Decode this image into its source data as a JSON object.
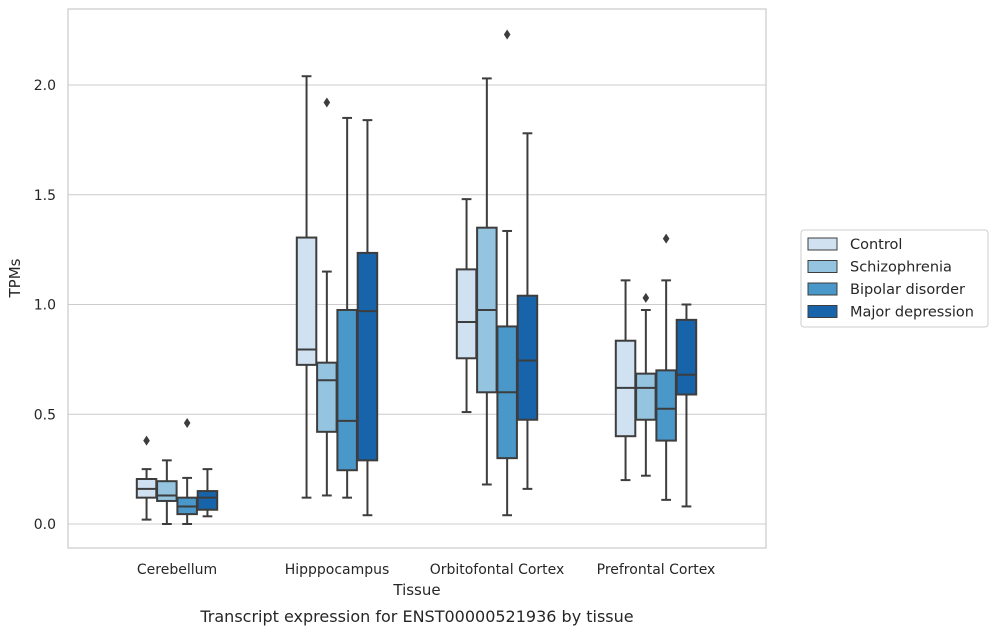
{
  "chart_data": {
    "type": "box",
    "title": "Transcript expression for ENST00000521936 by tissue",
    "xlabel": "Tissue",
    "ylabel": "TPMs",
    "ylim": [
      -0.11,
      2.35
    ],
    "yticks": [
      0.0,
      0.5,
      1.0,
      1.5,
      2.0
    ],
    "ytick_labels": [
      "0.0",
      "0.5",
      "1.0",
      "1.5",
      "2.0"
    ],
    "categories": [
      "Cerebellum",
      "Hipppocampus",
      "Orbitofontal Cortex",
      "Prefrontal Cortex"
    ],
    "grid": "horizontal",
    "legend_position": "right",
    "series": [
      {
        "name": "Control",
        "color": "#d0e1f2",
        "boxes": [
          {
            "whisker_low": 0.02,
            "q1": 0.12,
            "median": 0.16,
            "q3": 0.205,
            "whisker_high": 0.25,
            "outliers": [
              0.38
            ]
          },
          {
            "whisker_low": 0.12,
            "q1": 0.725,
            "median": 0.795,
            "q3": 1.305,
            "whisker_high": 2.04,
            "outliers": []
          },
          {
            "whisker_low": 0.51,
            "q1": 0.755,
            "median": 0.92,
            "q3": 1.16,
            "whisker_high": 1.48,
            "outliers": []
          },
          {
            "whisker_low": 0.2,
            "q1": 0.4,
            "median": 0.62,
            "q3": 0.835,
            "whisker_high": 1.11,
            "outliers": []
          }
        ]
      },
      {
        "name": "Schizophrenia",
        "color": "#94c4df",
        "boxes": [
          {
            "whisker_low": 0.0,
            "q1": 0.105,
            "median": 0.13,
            "q3": 0.195,
            "whisker_high": 0.29,
            "outliers": []
          },
          {
            "whisker_low": 0.13,
            "q1": 0.42,
            "median": 0.655,
            "q3": 0.735,
            "whisker_high": 1.15,
            "outliers": [
              1.92
            ]
          },
          {
            "whisker_low": 0.18,
            "q1": 0.6,
            "median": 0.975,
            "q3": 1.35,
            "whisker_high": 2.03,
            "outliers": []
          },
          {
            "whisker_low": 0.22,
            "q1": 0.475,
            "median": 0.62,
            "q3": 0.685,
            "whisker_high": 0.975,
            "outliers": [
              1.03
            ]
          }
        ]
      },
      {
        "name": "Bipolar disorder",
        "color": "#4a98c9",
        "boxes": [
          {
            "whisker_low": 0.0,
            "q1": 0.045,
            "median": 0.08,
            "q3": 0.12,
            "whisker_high": 0.21,
            "outliers": [
              0.46
            ]
          },
          {
            "whisker_low": 0.12,
            "q1": 0.245,
            "median": 0.47,
            "q3": 0.975,
            "whisker_high": 1.85,
            "outliers": []
          },
          {
            "whisker_low": 0.04,
            "q1": 0.3,
            "median": 0.6,
            "q3": 0.9,
            "whisker_high": 1.335,
            "outliers": [
              2.23
            ]
          },
          {
            "whisker_low": 0.11,
            "q1": 0.38,
            "median": 0.525,
            "q3": 0.7,
            "whisker_high": 1.11,
            "outliers": [
              1.3
            ]
          }
        ]
      },
      {
        "name": "Major depression",
        "color": "#1764ab",
        "boxes": [
          {
            "whisker_low": 0.035,
            "q1": 0.065,
            "median": 0.12,
            "q3": 0.15,
            "whisker_high": 0.25,
            "outliers": []
          },
          {
            "whisker_low": 0.04,
            "q1": 0.29,
            "median": 0.97,
            "q3": 1.235,
            "whisker_high": 1.84,
            "outliers": []
          },
          {
            "whisker_low": 0.16,
            "q1": 0.475,
            "median": 0.745,
            "q3": 1.04,
            "whisker_high": 1.78,
            "outliers": []
          },
          {
            "whisker_low": 0.08,
            "q1": 0.59,
            "median": 0.68,
            "q3": 0.93,
            "whisker_high": 1.0,
            "outliers": []
          }
        ]
      }
    ]
  }
}
